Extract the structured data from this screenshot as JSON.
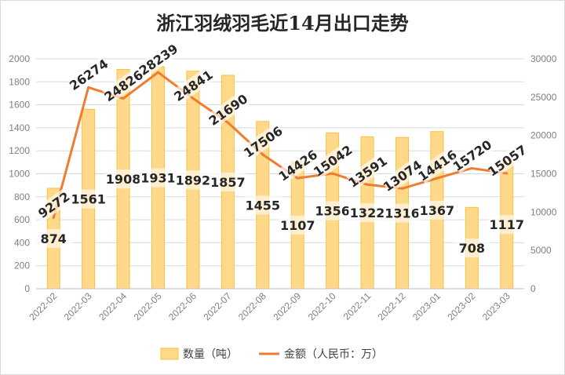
{
  "chart_data": {
    "type": "bar+line",
    "title": "浙江羽绒羽毛近14月出口走势",
    "categories": [
      "2022-02",
      "2022-03",
      "2022-04",
      "2022-05",
      "2022-06",
      "2022-07",
      "2022-08",
      "2022-09",
      "2022-10",
      "2022-11",
      "2022-12",
      "2023-01",
      "2023-02",
      "2023-03"
    ],
    "series": [
      {
        "name": "数量（吨）",
        "type": "bar",
        "axis": "left",
        "color": "#FFD88A",
        "values": [
          874,
          1561,
          1908,
          1931,
          1892,
          1857,
          1455,
          1107,
          1356,
          1322,
          1316,
          1367,
          708,
          1117
        ]
      },
      {
        "name": "金额（人民币：万）",
        "type": "line",
        "axis": "right",
        "color": "#ED7D31",
        "values": [
          9272,
          26274,
          24826,
          28239,
          24841,
          21690,
          17506,
          14426,
          15042,
          13591,
          13074,
          14416,
          15720,
          15057
        ]
      }
    ],
    "left_axis": {
      "ylim": [
        0,
        2000
      ],
      "ticks": [
        "0",
        "200",
        "400",
        "600",
        "800",
        "1000",
        "1200",
        "1400",
        "1600",
        "1800",
        "2000"
      ]
    },
    "right_axis": {
      "ylim": [
        0,
        30000
      ],
      "ticks": [
        "0",
        "5000",
        "10000",
        "15000",
        "20000",
        "25000",
        "30000"
      ]
    },
    "grid": true,
    "legend": "bottom"
  }
}
